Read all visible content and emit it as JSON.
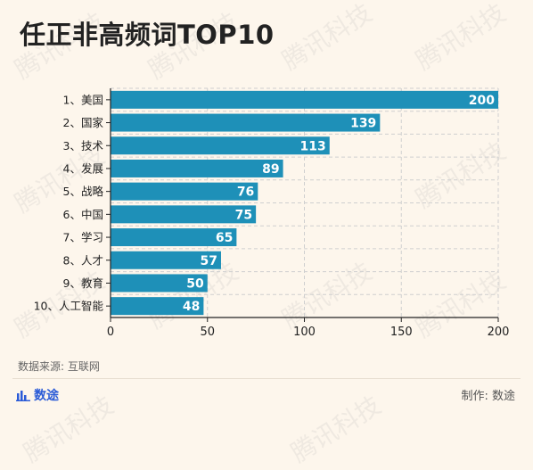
{
  "title": "任正非高频词TOP10",
  "source": "数据来源: 互联网",
  "brand": "数途",
  "maker": "制作: 数途",
  "watermark": "腾讯科技",
  "colors": {
    "bar": "#1e90b8",
    "label": "#ffffff",
    "axis": "#222222",
    "grid": "#cfcfcf"
  },
  "chart_data": {
    "type": "bar",
    "orientation": "horizontal",
    "categories": [
      "1、美国",
      "2、国家",
      "3、技术",
      "4、发展",
      "5、战略",
      "6、中国",
      "7、学习",
      "8、人才",
      "9、教育",
      "10、人工智能"
    ],
    "values": [
      200,
      139,
      113,
      89,
      76,
      75,
      65,
      57,
      50,
      48
    ],
    "xlim": [
      0,
      200
    ],
    "xticks": [
      0,
      50,
      100,
      150,
      200
    ],
    "grid": true,
    "data_labels": true
  }
}
